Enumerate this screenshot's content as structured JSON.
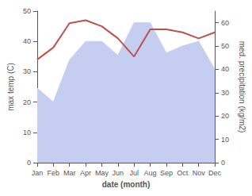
{
  "chart_data": {
    "type": "line",
    "categories": [
      "Jan",
      "Feb",
      "Mar",
      "Apr",
      "May",
      "Jun",
      "Jul",
      "Aug",
      "Sep",
      "Oct",
      "Nov",
      "Dec"
    ],
    "xlabel": "date (month)",
    "ylabel": "max temp (C)",
    "y2label": "med. precipitation (kg/m2)",
    "series": [
      {
        "type": "area",
        "axis": "y2",
        "color": "#c5cef0",
        "values": [
          32,
          26,
          44,
          52,
          52,
          46,
          60,
          60,
          47,
          50,
          52,
          40
        ]
      },
      {
        "type": "line",
        "color": "#c0504d",
        "values": [
          34,
          38,
          46,
          47,
          45,
          41,
          35,
          44,
          44,
          43,
          41,
          43
        ]
      }
    ],
    "ylim": [
      0,
      50
    ],
    "yticks": [
      0,
      10,
      20,
      30,
      40,
      50
    ],
    "y2lim": [
      0,
      65
    ],
    "y2ticks": [
      0,
      10,
      20,
      30,
      40,
      50,
      60
    ],
    "grid": false
  }
}
